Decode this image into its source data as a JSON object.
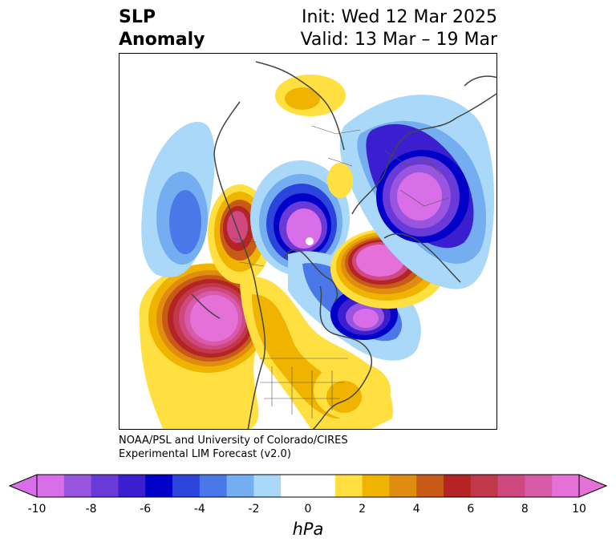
{
  "title": {
    "left_line1": "SLP",
    "left_line2": "Anomaly",
    "init": "Init: Wed 12 Mar 2025",
    "valid": "Valid: 13 Mar – 19 Mar"
  },
  "credit": {
    "line1": "NOAA/PSL and University of Colorado/CIRES",
    "line2": "Experimental LIM Forecast (v2.0)"
  },
  "colorbar": {
    "units": "hPa",
    "ticks": [
      "-10",
      "-8",
      "-6",
      "-4",
      "-2",
      "0",
      "2",
      "4",
      "6",
      "8",
      "10"
    ],
    "colors": [
      "#d86ee8",
      "#9a55e0",
      "#6a3ad8",
      "#3a1ed0",
      "#0000c8",
      "#2a44dc",
      "#4a78e8",
      "#74aef0",
      "#aad8f8",
      "#ffffff",
      "#ffffff",
      "#ffe040",
      "#f0b400",
      "#e08c10",
      "#c85a18",
      "#b42424",
      "#c0384a",
      "#d04880",
      "#d85aa8",
      "#e470d8"
    ],
    "under_color": "#d86ee8",
    "over_color": "#e470d8"
  },
  "anomaly_centers": [
    {
      "region": "northeast Pacific",
      "sign": "positive"
    },
    {
      "region": "western Canada",
      "sign": "positive"
    },
    {
      "region": "Arctic Ocean",
      "sign": "negative"
    },
    {
      "region": "Hudson Bay",
      "sign": "negative"
    },
    {
      "region": "northwest Atlantic",
      "sign": "negative"
    },
    {
      "region": "Greenland / Iceland",
      "sign": "positive"
    },
    {
      "region": "northern Eurasia",
      "sign": "negative"
    },
    {
      "region": "Siberia",
      "sign": "positive"
    }
  ]
}
